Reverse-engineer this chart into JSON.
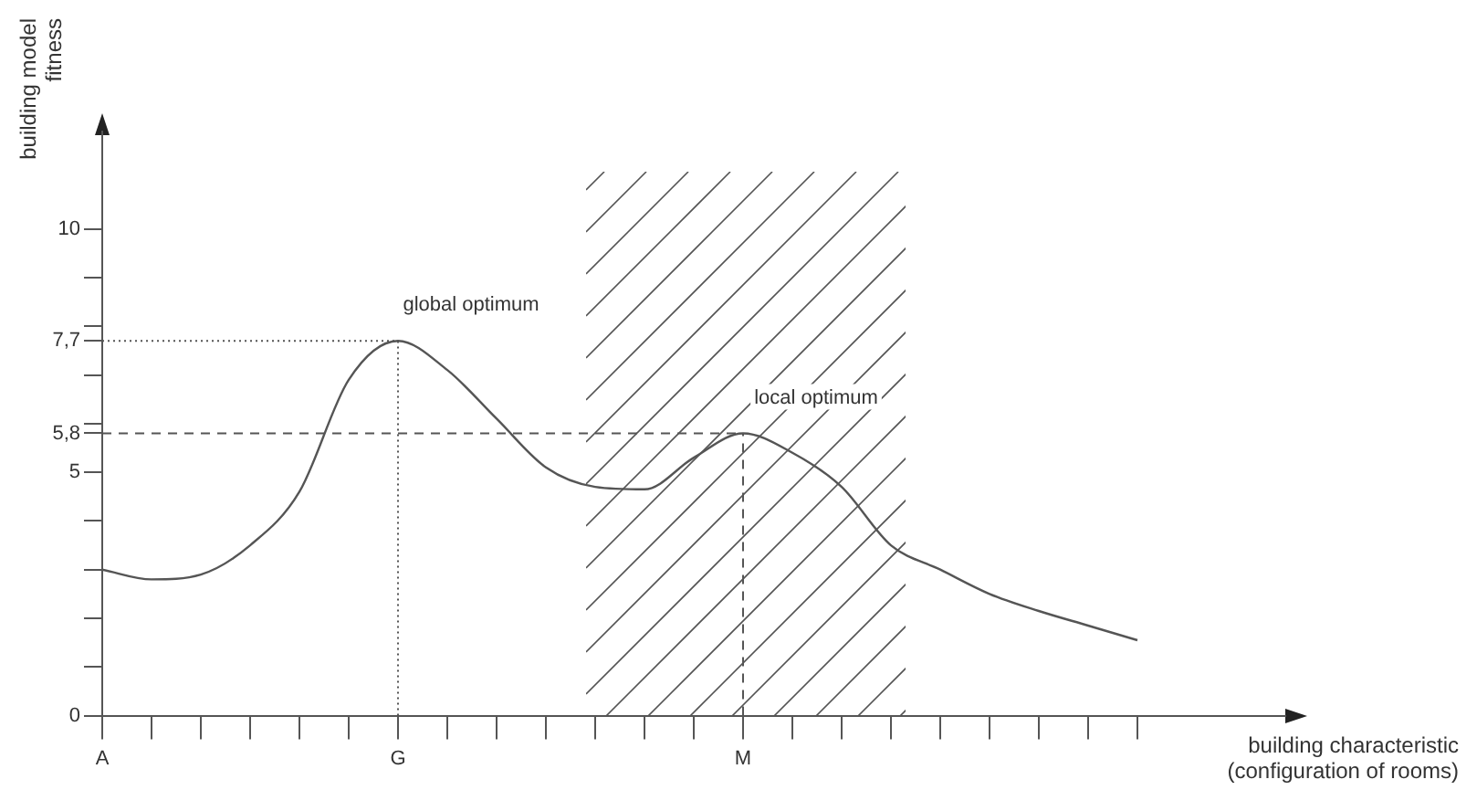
{
  "chart_data": {
    "type": "line",
    "xlabel": "building characteristic\n(configuration of rooms)",
    "ylabel": "building model\nfitness",
    "categories": [
      "A",
      null,
      null,
      null,
      null,
      null,
      "G",
      null,
      null,
      null,
      null,
      null,
      null,
      "M",
      null,
      null,
      null,
      null,
      null,
      null,
      null,
      null
    ],
    "ylim": [
      0,
      12
    ],
    "yticks": [
      0,
      {
        "value": 1,
        "label": null
      },
      {
        "value": 2,
        "label": null
      },
      {
        "value": 3,
        "label": null
      },
      {
        "value": 4,
        "label": null
      },
      5,
      {
        "value": 5.8,
        "label": "5,8"
      },
      {
        "value": 6,
        "label": null
      },
      {
        "value": 7,
        "label": null
      },
      {
        "value": 7.7,
        "label": "7,7"
      },
      {
        "value": 8,
        "label": null
      },
      {
        "value": 9,
        "label": null
      },
      10
    ],
    "marker": "none",
    "line_style": "solid",
    "series": [
      {
        "color": "#555555",
        "values": [
          3,
          2.8,
          2.9,
          3.5,
          4.6,
          6.9,
          7.7,
          7.1,
          6.1,
          5.1,
          4.7,
          4.65,
          5.3,
          5.8,
          5.4,
          4.7,
          3.5,
          3,
          2.5,
          2.15,
          1.85,
          1.55
        ]
      }
    ],
    "ref_lines": [
      {
        "axis": "y",
        "value": 7.7,
        "line_style": "dotted",
        "color": "#555555"
      },
      {
        "axis": "x",
        "value": "G",
        "line_style": "dotted",
        "color": "#555555"
      },
      {
        "axis": "y",
        "value": 5.8,
        "line_style": "dashed",
        "color": "#555555"
      },
      {
        "axis": "x",
        "value": "M",
        "line_style": "dashed",
        "color": "#555555"
      }
    ],
    "annotations": [
      {
        "text": "global optimum",
        "x": "G",
        "y": 7.7
      },
      {
        "text": "local optimum",
        "x": "M",
        "y": 5.8
      }
    ]
  }
}
